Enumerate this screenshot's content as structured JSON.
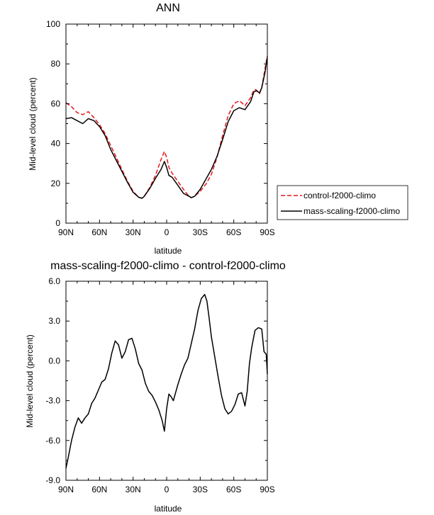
{
  "chart_data": [
    {
      "type": "line",
      "title": "ANN",
      "xlabel": "latitude",
      "ylabel": "Mid-level cloud (percent)",
      "xlim": [
        90,
        -90
      ],
      "ylim": [
        0,
        100
      ],
      "x_ticks": [
        {
          "value": 90,
          "label": "90N"
        },
        {
          "value": 60,
          "label": "60N"
        },
        {
          "value": 30,
          "label": "30N"
        },
        {
          "value": 0,
          "label": "0"
        },
        {
          "value": -30,
          "label": "30S"
        },
        {
          "value": -60,
          "label": "60S"
        },
        {
          "value": -90,
          "label": "90S"
        }
      ],
      "y_ticks": [
        {
          "value": 0,
          "label": "0"
        },
        {
          "value": 20,
          "label": "20"
        },
        {
          "value": 40,
          "label": "40"
        },
        {
          "value": 60,
          "label": "60"
        },
        {
          "value": 80,
          "label": "80"
        },
        {
          "value": 100,
          "label": "100"
        }
      ],
      "grid": false,
      "legend_position": "right, outside plot",
      "x": [
        90,
        85,
        80,
        75,
        70,
        65,
        60,
        55,
        50,
        45,
        40,
        35,
        30,
        25,
        22,
        20,
        15,
        10,
        5,
        2,
        0,
        -2,
        -5,
        -10,
        -15,
        -20,
        -22,
        -25,
        -30,
        -35,
        -40,
        -45,
        -50,
        -55,
        -60,
        -65,
        -70,
        -75,
        -78,
        -80,
        -83,
        -85,
        -88,
        -90
      ],
      "series": [
        {
          "name": "control-f2000-climo",
          "color": "#e8161b",
          "dash": "dashed",
          "values": [
            60.5,
            58.5,
            55.5,
            54.5,
            56,
            53,
            49.5,
            45,
            39,
            33,
            27,
            21,
            16,
            13,
            12.5,
            13.5,
            18,
            24,
            32,
            36,
            33,
            28,
            25,
            21,
            17,
            13.5,
            12.8,
            13.5,
            16,
            19.5,
            24.5,
            33,
            44,
            54,
            60,
            61.5,
            59,
            63,
            67,
            67,
            65,
            68,
            78,
            84
          ]
        },
        {
          "name": "mass-scaling-f2000-climo",
          "color": "#000000",
          "dash": "solid",
          "values": [
            52.5,
            53,
            51.5,
            50,
            52.5,
            51.5,
            48.5,
            44,
            37,
            31.5,
            26,
            20.5,
            15.5,
            13,
            12.5,
            13.5,
            17.5,
            22.5,
            27,
            31,
            28,
            24,
            23,
            19,
            15,
            13.5,
            12.8,
            13.5,
            17,
            22,
            27,
            33.5,
            42,
            51,
            56.5,
            58,
            57,
            61,
            66,
            66.5,
            65.5,
            68,
            76,
            83.5
          ]
        }
      ]
    },
    {
      "type": "line",
      "title": "mass-scaling-f2000-climo - control-f2000-climo",
      "xlabel": "latitude",
      "ylabel": "Mid-level cloud (percent)",
      "xlim": [
        90,
        -90
      ],
      "ylim": [
        -9,
        6
      ],
      "x_ticks": [
        {
          "value": 90,
          "label": "90N"
        },
        {
          "value": 60,
          "label": "60N"
        },
        {
          "value": 30,
          "label": "30N"
        },
        {
          "value": 0,
          "label": "0"
        },
        {
          "value": -30,
          "label": "30S"
        },
        {
          "value": -60,
          "label": "60S"
        },
        {
          "value": -90,
          "label": "90S"
        }
      ],
      "y_ticks": [
        {
          "value": -9,
          "label": "-9.0"
        },
        {
          "value": -6,
          "label": "-6.0"
        },
        {
          "value": -3,
          "label": "-3.0"
        },
        {
          "value": 0,
          "label": "0.0"
        },
        {
          "value": 3,
          "label": "3.0"
        },
        {
          "value": 6,
          "label": "6.0"
        }
      ],
      "grid": false,
      "x": [
        90,
        88,
        85,
        82,
        79,
        76,
        73,
        70,
        67,
        64,
        61,
        58,
        55,
        52,
        49,
        46,
        43,
        40,
        37,
        34,
        31,
        28,
        25,
        22,
        19,
        16,
        13,
        10,
        7,
        4,
        2,
        0,
        -2,
        -4,
        -6,
        -8,
        -10,
        -13,
        -16,
        -19,
        -22,
        -25,
        -28,
        -31,
        -34,
        -36,
        -38,
        -40,
        -43,
        -46,
        -49,
        -52,
        -55,
        -58,
        -61,
        -64,
        -67,
        -70,
        -72,
        -74,
        -76,
        -79,
        -82,
        -85,
        -87,
        -89,
        -90
      ],
      "series": [
        {
          "name": "",
          "color": "#000000",
          "dash": "solid",
          "values": [
            -8.1,
            -7.3,
            -6.0,
            -5.0,
            -4.3,
            -4.7,
            -4.3,
            -4.0,
            -3.2,
            -2.8,
            -2.2,
            -1.6,
            -1.4,
            -0.6,
            0.6,
            1.5,
            1.2,
            0.2,
            0.7,
            1.6,
            1.7,
            0.9,
            -0.2,
            -0.7,
            -1.7,
            -2.3,
            -2.6,
            -3.1,
            -3.7,
            -4.5,
            -5.3,
            -3.6,
            -2.5,
            -2.7,
            -3.0,
            -2.4,
            -1.8,
            -1.0,
            -0.3,
            0.2,
            1.3,
            2.4,
            3.8,
            4.7,
            5.0,
            4.5,
            3.2,
            1.8,
            0.3,
            -1.2,
            -2.6,
            -3.6,
            -4.0,
            -3.8,
            -3.3,
            -2.5,
            -2.4,
            -3.4,
            -2.3,
            -0.2,
            1.0,
            2.3,
            2.5,
            2.4,
            0.7,
            0.5,
            -1.0
          ]
        }
      ]
    }
  ]
}
